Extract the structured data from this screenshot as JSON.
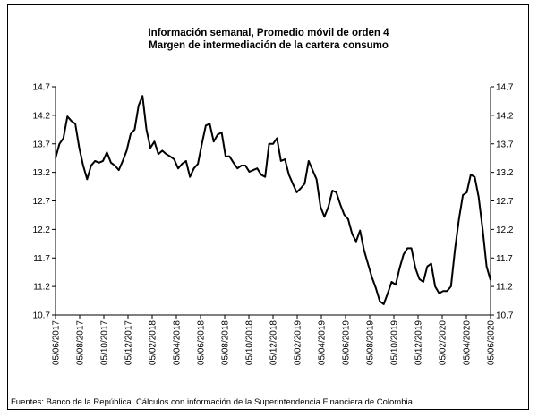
{
  "chart_data": {
    "type": "line",
    "title": [
      "Información semanal, Promedio móvil de orden 4",
      "Margen de intermediación de la cartera consumo"
    ],
    "source": "Fuentes: Banco de la República. Cálculos con información de la Superintendencia Financiera de Colombia.",
    "x_labels": [
      "05/06/2017",
      "05/08/2017",
      "05/10/2017",
      "05/12/2017",
      "05/02/2018",
      "05/04/2018",
      "05/06/2018",
      "05/08/2018",
      "05/10/2018",
      "05/12/2018",
      "05/02/2019",
      "05/04/2019",
      "05/06/2019",
      "05/08/2019",
      "05/10/2019",
      "05/12/2019",
      "05/02/2020",
      "05/04/2020",
      "05/06/2020"
    ],
    "series": [
      {
        "color": "#000000",
        "values": [
          13.45,
          13.7,
          13.8,
          14.18,
          14.1,
          14.05,
          13.63,
          13.32,
          13.08,
          13.32,
          13.4,
          13.37,
          13.4,
          13.55,
          13.37,
          13.32,
          13.24,
          13.4,
          13.58,
          13.87,
          13.95,
          14.37,
          14.54,
          13.95,
          13.63,
          13.74,
          13.52,
          13.58,
          13.52,
          13.48,
          13.43,
          13.27,
          13.35,
          13.4,
          13.12,
          13.27,
          13.35,
          13.7,
          14.02,
          14.05,
          13.74,
          13.86,
          13.9,
          13.48,
          13.48,
          13.37,
          13.27,
          13.32,
          13.32,
          13.21,
          13.24,
          13.27,
          13.16,
          13.12,
          13.7,
          13.7,
          13.8,
          13.4,
          13.43,
          13.16,
          13.0,
          12.85,
          12.92,
          13.0,
          13.4,
          13.24,
          13.08,
          12.6,
          12.42,
          12.6,
          12.88,
          12.85,
          12.64,
          12.46,
          12.38,
          12.12,
          11.99,
          12.18,
          11.84,
          11.6,
          11.36,
          11.17,
          10.94,
          10.89,
          11.08,
          11.28,
          11.23,
          11.52,
          11.76,
          11.87,
          11.87,
          11.52,
          11.33,
          11.28,
          11.55,
          11.6,
          11.2,
          11.08,
          11.12,
          11.12,
          11.2,
          11.84,
          12.38,
          12.8,
          12.85,
          13.16,
          13.12,
          12.77,
          12.2,
          11.55,
          11.31
        ]
      }
    ],
    "ylim": [
      10.7,
      14.7
    ],
    "yticks": [
      10.7,
      11.2,
      11.7,
      12.2,
      12.7,
      13.2,
      13.7,
      14.2,
      14.7
    ],
    "y2lim": [
      10.7,
      14.7
    ],
    "y2ticks": [
      10.7,
      11.2,
      11.7,
      12.2,
      12.7,
      13.2,
      13.7,
      14.2,
      14.7
    ]
  }
}
